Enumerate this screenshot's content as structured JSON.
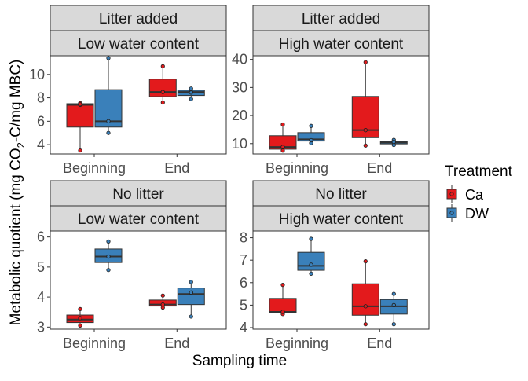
{
  "chart_data": {
    "type": "boxplot",
    "xlabel": "Sampling time",
    "ylabel_parts": [
      "Metabolic quotient (mg CO",
      "2",
      "-C/mg MBC)"
    ],
    "categories": [
      "Beginning",
      "End"
    ],
    "legend": {
      "title": "Treatment",
      "position": "right",
      "items": [
        {
          "name": "Ca",
          "color": "#E31A1C"
        },
        {
          "name": "DW",
          "color": "#3A80BA"
        }
      ]
    },
    "panels": [
      {
        "strip_top": "Litter added",
        "strip_bottom": "Low water content",
        "ylim": [
          3.2,
          11.6
        ],
        "yticks": [
          4,
          6,
          8,
          10
        ],
        "boxes": [
          {
            "category": "Beginning",
            "treatment": "Ca",
            "min": 3.5,
            "q1": 5.5,
            "median": 7.4,
            "q3": 7.5,
            "max": 7.6,
            "mean": 7.45,
            "points": [
              3.5,
              7.4,
              7.55
            ]
          },
          {
            "category": "Beginning",
            "treatment": "DW",
            "min": 5.0,
            "q1": 5.5,
            "median": 6.0,
            "q3": 8.7,
            "max": 11.4,
            "mean": 6.0,
            "points": [
              5.0,
              6.0,
              11.4
            ]
          },
          {
            "category": "End",
            "treatment": "Ca",
            "min": 7.6,
            "q1": 8.1,
            "median": 8.5,
            "q3": 9.6,
            "max": 10.7,
            "mean": 8.5,
            "points": [
              7.6,
              8.5,
              10.7
            ]
          },
          {
            "category": "End",
            "treatment": "DW",
            "min": 7.9,
            "q1": 8.2,
            "median": 8.5,
            "q3": 8.65,
            "max": 8.8,
            "mean": 8.45,
            "points": [
              7.9,
              8.5,
              8.8
            ]
          }
        ]
      },
      {
        "strip_top": "Litter added",
        "strip_bottom": "High water content",
        "ylim": [
          6.3,
          41.3
        ],
        "yticks": [
          10,
          20,
          30,
          40
        ],
        "boxes": [
          {
            "category": "Beginning",
            "treatment": "Ca",
            "min": 7.5,
            "q1": 8.0,
            "median": 8.8,
            "q3": 12.8,
            "max": 16.8,
            "mean": 8.8,
            "points": [
              7.5,
              8.8,
              16.8
            ]
          },
          {
            "category": "Beginning",
            "treatment": "DW",
            "min": 10.2,
            "q1": 10.9,
            "median": 11.5,
            "q3": 13.9,
            "max": 16.3,
            "mean": 11.2,
            "points": [
              10.2,
              11.2,
              16.3
            ]
          },
          {
            "category": "End",
            "treatment": "Ca",
            "min": 9.3,
            "q1": 12.1,
            "median": 14.8,
            "q3": 26.8,
            "max": 39.0,
            "mean": 14.8,
            "points": [
              9.3,
              14.8,
              39.0
            ]
          },
          {
            "category": "End",
            "treatment": "DW",
            "min": 9.5,
            "q1": 9.9,
            "median": 10.4,
            "q3": 10.8,
            "max": 11.3,
            "mean": 10.6,
            "points": [
              9.5,
              10.6,
              11.3
            ]
          }
        ]
      },
      {
        "strip_top": "No litter",
        "strip_bottom": "Low water content",
        "ylim": [
          2.93,
          6.2
        ],
        "yticks": [
          3,
          4,
          5,
          6
        ],
        "boxes": [
          {
            "category": "Beginning",
            "treatment": "Ca",
            "min": 3.05,
            "q1": 3.15,
            "median": 3.25,
            "q3": 3.4,
            "max": 3.6,
            "mean": 3.3,
            "points": [
              3.05,
              3.3,
              3.6
            ]
          },
          {
            "category": "Beginning",
            "treatment": "DW",
            "min": 4.9,
            "q1": 5.15,
            "median": 5.35,
            "q3": 5.6,
            "max": 5.85,
            "mean": 5.35,
            "points": [
              4.9,
              5.35,
              5.85
            ]
          },
          {
            "category": "End",
            "treatment": "Ca",
            "min": 3.65,
            "q1": 3.7,
            "median": 3.75,
            "q3": 3.9,
            "max": 4.05,
            "mean": 3.75,
            "points": [
              3.65,
              3.75,
              4.05
            ]
          },
          {
            "category": "End",
            "treatment": "DW",
            "min": 3.35,
            "q1": 3.75,
            "median": 4.1,
            "q3": 4.3,
            "max": 4.5,
            "mean": 4.15,
            "points": [
              3.35,
              4.15,
              4.5
            ]
          }
        ]
      },
      {
        "strip_top": "No litter",
        "strip_bottom": "High water content",
        "ylim": [
          3.93,
          8.3
        ],
        "yticks": [
          4,
          5,
          6,
          7,
          8
        ],
        "boxes": [
          {
            "category": "Beginning",
            "treatment": "Ca",
            "min": 4.6,
            "q1": 4.65,
            "median": 4.7,
            "q3": 5.3,
            "max": 5.9,
            "mean": 4.7,
            "points": [
              4.6,
              4.7,
              5.9
            ]
          },
          {
            "category": "Beginning",
            "treatment": "DW",
            "min": 6.4,
            "q1": 6.55,
            "median": 6.75,
            "q3": 7.35,
            "max": 7.95,
            "mean": 6.8,
            "points": [
              6.4,
              6.8,
              7.95
            ]
          },
          {
            "category": "End",
            "treatment": "Ca",
            "min": 4.15,
            "q1": 4.55,
            "median": 4.95,
            "q3": 5.95,
            "max": 6.95,
            "mean": 4.95,
            "points": [
              4.15,
              4.95,
              6.95
            ]
          },
          {
            "category": "End",
            "treatment": "DW",
            "min": 4.15,
            "q1": 4.6,
            "median": 4.95,
            "q3": 5.25,
            "max": 5.5,
            "mean": 5.0,
            "points": [
              4.15,
              5.0,
              5.5
            ]
          }
        ]
      }
    ]
  }
}
